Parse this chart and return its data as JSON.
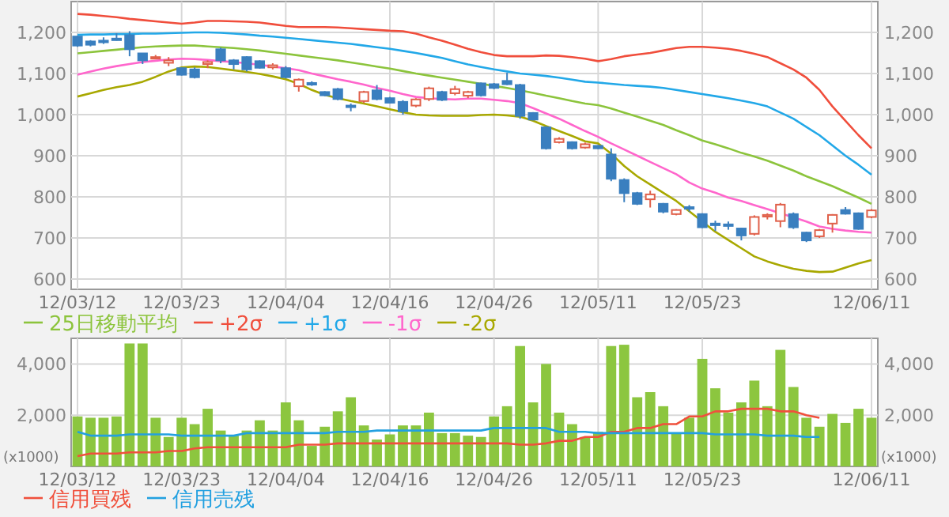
{
  "chart_data": [
    {
      "type": "candlestick",
      "categories": [
        "12/03/12",
        null,
        null,
        null,
        null,
        null,
        null,
        null,
        "12/03/23",
        null,
        null,
        null,
        null,
        null,
        null,
        null,
        "12/04/04",
        null,
        null,
        null,
        null,
        null,
        null,
        null,
        "12/04/16",
        null,
        null,
        null,
        null,
        null,
        null,
        null,
        "12/04/26",
        null,
        null,
        null,
        null,
        null,
        null,
        null,
        "12/05/11",
        null,
        null,
        null,
        null,
        null,
        null,
        null,
        "12/05/23",
        null,
        null,
        null,
        null,
        null,
        null,
        null,
        null,
        null,
        null,
        null,
        null,
        "12/06/11"
      ],
      "ohlc": [
        [
          1190,
          1192,
          1165,
          1168
        ],
        [
          1178,
          1181,
          1166,
          1170
        ],
        [
          1180,
          1188,
          1172,
          1176
        ],
        [
          1185,
          1198,
          1180,
          1183
        ],
        [
          1193,
          1203,
          1142,
          1159
        ],
        [
          1149,
          1150,
          1123,
          1132
        ],
        [
          1138,
          1145,
          1135,
          1140
        ],
        [
          1126,
          1140,
          1118,
          1132
        ],
        [
          1113,
          1115,
          1095,
          1097
        ],
        [
          1110,
          1115,
          1088,
          1091
        ],
        [
          1123,
          1132,
          1113,
          1128
        ],
        [
          1159,
          1163,
          1125,
          1132
        ],
        [
          1132,
          1135,
          1110,
          1123
        ],
        [
          1140,
          1142,
          1105,
          1110
        ],
        [
          1130,
          1132,
          1112,
          1114
        ],
        [
          1115,
          1125,
          1110,
          1120
        ],
        [
          1113,
          1118,
          1088,
          1091
        ],
        [
          1069,
          1088,
          1056,
          1085
        ],
        [
          1077,
          1081,
          1070,
          1073
        ],
        [
          1055,
          1057,
          1045,
          1047
        ],
        [
          1062,
          1065,
          1035,
          1038
        ],
        [
          1022,
          1027,
          1008,
          1020
        ],
        [
          1033,
          1058,
          1028,
          1055
        ],
        [
          1059,
          1072,
          1035,
          1038
        ],
        [
          1040,
          1043,
          1027,
          1029
        ],
        [
          1031,
          1035,
          1000,
          1008
        ],
        [
          1022,
          1040,
          1018,
          1037
        ],
        [
          1038,
          1068,
          1033,
          1064
        ],
        [
          1055,
          1058,
          1033,
          1036
        ],
        [
          1052,
          1070,
          1047,
          1062
        ],
        [
          1046,
          1058,
          1040,
          1055
        ],
        [
          1076,
          1078,
          1044,
          1047
        ],
        [
          1074,
          1077,
          1062,
          1065
        ],
        [
          1082,
          1102,
          1072,
          1074
        ],
        [
          1072,
          1075,
          990,
          997
        ],
        [
          1004,
          1006,
          986,
          988
        ],
        [
          969,
          972,
          915,
          918
        ],
        [
          933,
          945,
          930,
          941
        ],
        [
          933,
          935,
          915,
          918
        ],
        [
          920,
          932,
          917,
          928
        ],
        [
          924,
          926,
          916,
          918
        ],
        [
          903,
          918,
          838,
          844
        ],
        [
          841,
          845,
          787,
          809
        ],
        [
          809,
          812,
          780,
          783
        ],
        [
          794,
          815,
          774,
          806
        ],
        [
          783,
          785,
          760,
          764
        ],
        [
          758,
          770,
          755,
          768
        ],
        [
          775,
          780,
          764,
          771
        ],
        [
          758,
          760,
          724,
          726
        ],
        [
          735,
          742,
          717,
          731
        ],
        [
          733,
          740,
          720,
          730
        ],
        [
          723,
          725,
          694,
          706
        ],
        [
          710,
          755,
          706,
          751
        ],
        [
          752,
          760,
          745,
          756
        ],
        [
          741,
          785,
          726,
          781
        ],
        [
          758,
          762,
          722,
          726
        ],
        [
          713,
          715,
          690,
          694
        ],
        [
          704,
          722,
          700,
          719
        ],
        [
          735,
          758,
          713,
          756
        ],
        [
          768,
          775,
          757,
          759
        ],
        [
          760,
          762,
          720,
          722
        ],
        [
          751,
          770,
          748,
          767
        ]
      ],
      "colors": [
        "#3a7fbf",
        "#3a7fbf",
        "#3a7fbf",
        "#3a7fbf",
        "#3a7fbf",
        "#3a7fbf",
        "#e0604a",
        "#e0604a",
        "#3a7fbf",
        "#3a7fbf",
        "#e0604a",
        "#3a7fbf",
        "#3a7fbf",
        "#3a7fbf",
        "#3a7fbf",
        "#e0604a",
        "#3a7fbf",
        "#e0604a",
        "#3a7fbf",
        "#3a7fbf",
        "#3a7fbf",
        "#3a7fbf",
        "#e0604a",
        "#3a7fbf",
        "#3a7fbf",
        "#3a7fbf",
        "#e0604a",
        "#e0604a",
        "#3a7fbf",
        "#e0604a",
        "#e0604a",
        "#3a7fbf",
        "#3a7fbf",
        "#3a7fbf",
        "#3a7fbf",
        "#3a7fbf",
        "#3a7fbf",
        "#e0604a",
        "#3a7fbf",
        "#e0604a",
        "#3a7fbf",
        "#3a7fbf",
        "#3a7fbf",
        "#3a7fbf",
        "#e0604a",
        "#3a7fbf",
        "#e0604a",
        "#3a7fbf",
        "#3a7fbf",
        "#3a7fbf",
        "#3a7fbf",
        "#3a7fbf",
        "#e0604a",
        "#e0604a",
        "#e0604a",
        "#3a7fbf",
        "#3a7fbf",
        "#e0604a",
        "#e0604a",
        "#3a7fbf",
        "#3a7fbf",
        "#e0604a"
      ],
      "series": [
        {
          "name": "25日移動平均",
          "type": "line",
          "color": "#8cc43c",
          "values": [
            1149,
            1152,
            1155,
            1158,
            1161,
            1164,
            1166,
            1167,
            1168,
            1168,
            1166,
            1164,
            1162,
            1159,
            1156,
            1152,
            1148,
            1144,
            1140,
            1136,
            1132,
            1127,
            1122,
            1117,
            1112,
            1106,
            1100,
            1095,
            1090,
            1085,
            1080,
            1075,
            1070,
            1065,
            1059,
            1053,
            1046,
            1040,
            1033,
            1027,
            1023,
            1015,
            1005,
            995,
            985,
            975,
            962,
            950,
            937,
            928,
            918,
            907,
            898,
            888,
            876,
            864,
            850,
            838,
            826,
            812,
            798,
            783
          ]
        },
        {
          "name": "+2σ",
          "type": "line",
          "color": "#f04e3c",
          "values": [
            1245,
            1243,
            1240,
            1237,
            1233,
            1230,
            1227,
            1224,
            1221,
            1224,
            1228,
            1228,
            1227,
            1226,
            1224,
            1220,
            1216,
            1213,
            1213,
            1213,
            1212,
            1210,
            1208,
            1206,
            1204,
            1203,
            1197,
            1188,
            1180,
            1170,
            1160,
            1152,
            1145,
            1142,
            1142,
            1142,
            1144,
            1143,
            1140,
            1136,
            1130,
            1135,
            1142,
            1146,
            1150,
            1156,
            1162,
            1165,
            1165,
            1163,
            1160,
            1155,
            1148,
            1140,
            1125,
            1110,
            1090,
            1060,
            1020,
            985,
            950,
            918
          ]
        },
        {
          "name": "+1σ",
          "type": "line",
          "color": "#22a8e8",
          "values": [
            1194,
            1195,
            1195,
            1196,
            1196,
            1197,
            1197,
            1198,
            1199,
            1200,
            1200,
            1199,
            1197,
            1195,
            1192,
            1190,
            1187,
            1184,
            1181,
            1178,
            1175,
            1172,
            1168,
            1164,
            1160,
            1155,
            1150,
            1144,
            1138,
            1130,
            1122,
            1116,
            1110,
            1105,
            1100,
            1097,
            1094,
            1090,
            1085,
            1080,
            1078,
            1075,
            1072,
            1070,
            1068,
            1065,
            1060,
            1055,
            1050,
            1045,
            1040,
            1034,
            1028,
            1020,
            1005,
            990,
            970,
            950,
            925,
            900,
            878,
            854
          ]
        },
        {
          "name": "-1σ",
          "type": "line",
          "color": "#ff66cc",
          "values": [
            1097,
            1105,
            1112,
            1118,
            1123,
            1128,
            1131,
            1134,
            1136,
            1135,
            1133,
            1130,
            1128,
            1125,
            1121,
            1117,
            1113,
            1108,
            1100,
            1093,
            1086,
            1080,
            1073,
            1065,
            1058,
            1050,
            1043,
            1040,
            1038,
            1037,
            1039,
            1039,
            1036,
            1033,
            1028,
            1016,
            1003,
            990,
            975,
            960,
            946,
            930,
            915,
            900,
            885,
            870,
            855,
            835,
            820,
            810,
            798,
            790,
            780,
            770,
            760,
            750,
            740,
            728,
            722,
            718,
            715,
            713
          ]
        },
        {
          "name": "-2σ",
          "type": "line",
          "color": "#a8a800",
          "values": [
            1044,
            1052,
            1060,
            1067,
            1072,
            1080,
            1092,
            1105,
            1115,
            1117,
            1116,
            1112,
            1108,
            1104,
            1099,
            1093,
            1086,
            1075,
            1060,
            1048,
            1040,
            1033,
            1027,
            1020,
            1013,
            1006,
            1000,
            998,
            997,
            997,
            997,
            999,
            1000,
            998,
            995,
            985,
            972,
            960,
            948,
            935,
            930,
            905,
            875,
            850,
            830,
            810,
            790,
            765,
            740,
            715,
            695,
            675,
            655,
            643,
            633,
            625,
            620,
            617,
            618,
            628,
            638,
            646
          ]
        }
      ],
      "ylim": [
        575,
        1275
      ],
      "yticks": [
        600,
        700,
        800,
        900,
        {
          "value": 1000,
          "label": "1,000"
        },
        {
          "value": 1100,
          "label": "1,100"
        },
        {
          "value": 1200,
          "label": "1,200"
        }
      ],
      "y2lim": [
        575,
        1275
      ],
      "y2ticks": [
        600,
        700,
        800,
        900,
        {
          "value": 1000,
          "label": "1,000"
        },
        {
          "value": 1100,
          "label": "1,100"
        },
        {
          "value": 1200,
          "label": "1,200"
        }
      ],
      "grid": true,
      "legend": "bottom"
    },
    {
      "type": "bar",
      "categories": [
        "12/03/12",
        null,
        null,
        null,
        null,
        null,
        null,
        null,
        "12/03/23",
        null,
        null,
        null,
        null,
        null,
        null,
        null,
        "12/04/04",
        null,
        null,
        null,
        null,
        null,
        null,
        null,
        "12/04/16",
        null,
        null,
        null,
        null,
        null,
        null,
        null,
        "12/04/26",
        null,
        null,
        null,
        null,
        null,
        null,
        null,
        "12/05/11",
        null,
        null,
        null,
        null,
        null,
        null,
        null,
        "12/05/23",
        null,
        null,
        null,
        null,
        null,
        null,
        null,
        null,
        null,
        null,
        null,
        null,
        "12/06/11"
      ],
      "series": [
        {
          "type": "bar",
          "color": "#8cc63f",
          "values": [
            1950,
            1900,
            1900,
            1950,
            4800,
            4800,
            1900,
            1150,
            1900,
            1650,
            2250,
            1400,
            1200,
            1400,
            1800,
            1400,
            2500,
            1800,
            800,
            1550,
            2150,
            2700,
            1600,
            1050,
            1250,
            1600,
            1600,
            2100,
            1300,
            1300,
            1200,
            1150,
            1950,
            2350,
            4700,
            2500,
            4000,
            2100,
            1650,
            1150,
            1350,
            4700,
            4750,
            2700,
            2900,
            2350,
            1300,
            1900,
            4200,
            3050,
            2100,
            2500,
            3350,
            2350,
            4550,
            3100,
            1900,
            1550,
            2050,
            1700,
            2250,
            1900
          ]
        },
        {
          "name": "信用買残",
          "type": "line",
          "color": "#f0503c",
          "values": [
            400,
            500,
            500,
            500,
            550,
            550,
            550,
            600,
            600,
            700,
            750,
            750,
            750,
            750,
            750,
            750,
            750,
            850,
            850,
            850,
            900,
            900,
            900,
            900,
            900,
            900,
            900,
            900,
            900,
            900,
            900,
            900,
            900,
            900,
            850,
            850,
            900,
            1000,
            1000,
            1150,
            1150,
            1350,
            1350,
            1500,
            1500,
            1650,
            1650,
            1950,
            1950,
            2150,
            2150,
            2250,
            2250,
            2250,
            2150,
            2150,
            2000,
            1900,
            null,
            null,
            null,
            null
          ]
        },
        {
          "name": "信用売残",
          "type": "line",
          "color": "#22a0e0",
          "values": [
            1350,
            1200,
            1200,
            1200,
            1250,
            1250,
            1250,
            1250,
            1200,
            1200,
            1200,
            1200,
            1200,
            1300,
            1300,
            1300,
            1300,
            1300,
            1300,
            1300,
            1350,
            1350,
            1350,
            1400,
            1400,
            1400,
            1400,
            1400,
            1400,
            1400,
            1400,
            1400,
            1500,
            1500,
            1500,
            1500,
            1500,
            1350,
            1350,
            1350,
            1300,
            1300,
            1300,
            1300,
            1300,
            1300,
            1300,
            1300,
            1300,
            1250,
            1250,
            1250,
            1250,
            1200,
            1200,
            1200,
            1150,
            1150,
            null,
            null,
            null,
            null
          ]
        }
      ],
      "ylim": [
        0,
        5000
      ],
      "yticks": [
        {
          "value": 2000,
          "label": "2,000"
        },
        {
          "value": 4000,
          "label": "4,000"
        }
      ],
      "y2lim": [
        0,
        5000
      ],
      "y2ticks": [
        {
          "value": 2000,
          "label": "2,000"
        },
        {
          "value": 4000,
          "label": "4,000"
        }
      ],
      "annotations": [
        "(x1000)",
        "(x1000)"
      ],
      "grid": true,
      "legend": "bottom"
    }
  ]
}
